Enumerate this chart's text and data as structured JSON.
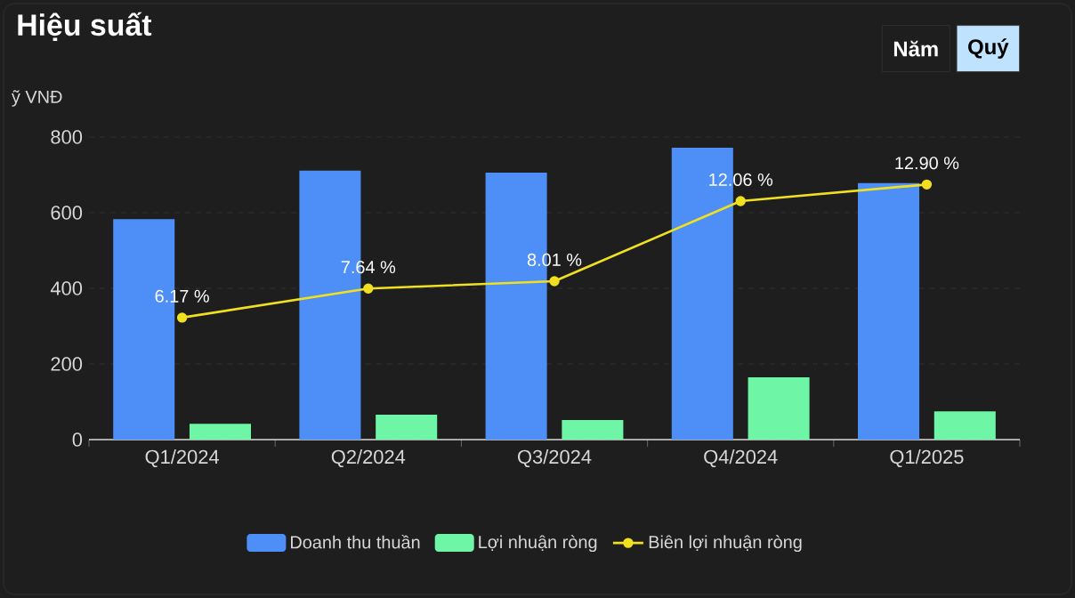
{
  "chart_data": {
    "type": "bar",
    "title": "Hiệu suất",
    "ylabel": "ỹ VNĐ",
    "categories": [
      "Q1/2024",
      "Q2/2024",
      "Q3/2024",
      "Q4/2024",
      "Q1/2025"
    ],
    "series": [
      {
        "name": "Doanh thu thuần",
        "color": "#4e8ef7",
        "values": [
          583,
          711,
          706,
          772,
          678
        ]
      },
      {
        "name": "Lợi nhuận ròng",
        "color": "#6ef5a5",
        "values": [
          42,
          66,
          52,
          165,
          75
        ]
      },
      {
        "name": "Biên lợi nhuận ròng",
        "type": "line",
        "axis": "y2",
        "color": "#f0e020",
        "marker": "circle",
        "values": [
          6.17,
          7.64,
          8.01,
          12.06,
          12.9
        ],
        "value_labels": [
          "6.17 %",
          "7.64 %",
          "8.01 %",
          "12.06 %",
          "12.90 %"
        ]
      }
    ],
    "ylim": [
      0,
      800
    ],
    "yticks": [
      0,
      200,
      400,
      600,
      800
    ],
    "y2lim": [
      0,
      15.3
    ],
    "grid": "y",
    "legend": "bottom",
    "annotations": [
      "Năm",
      "Quý"
    ]
  }
}
